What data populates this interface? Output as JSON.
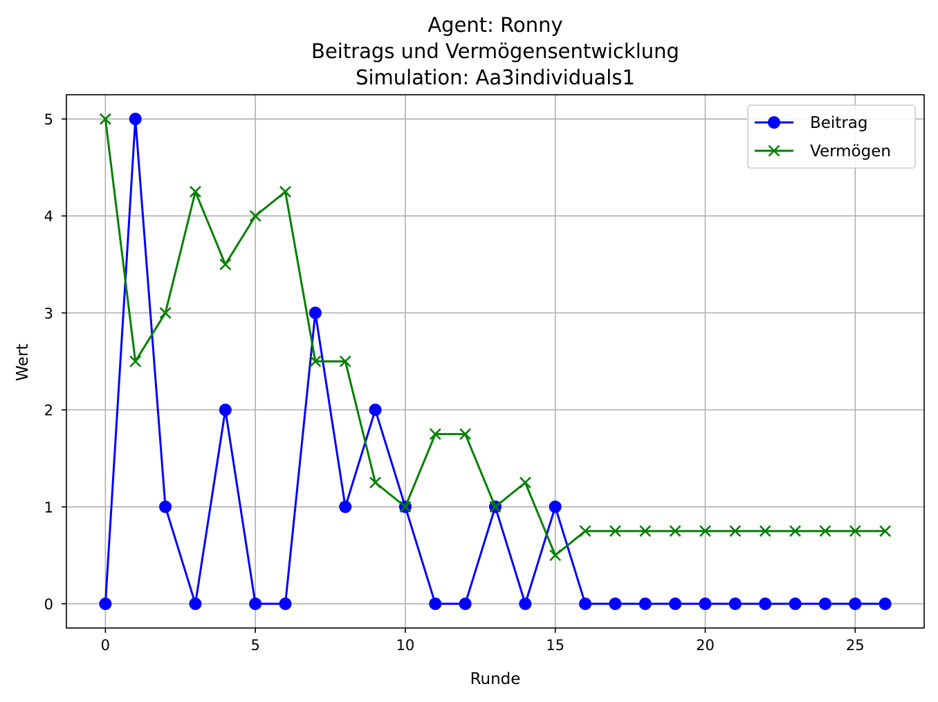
{
  "chart_data": {
    "type": "line",
    "title_lines": [
      "Agent: Ronny",
      "Beitrags und Vermögensentwicklung",
      "Simulation: Aa3individuals1"
    ],
    "xlabel": "Runde",
    "ylabel": "Wert",
    "xlim": [
      -1.3,
      27.3
    ],
    "ylim": [
      -0.25,
      5.25
    ],
    "xticks": [
      0,
      5,
      10,
      15,
      20,
      25
    ],
    "yticks": [
      0,
      1,
      2,
      3,
      4,
      5
    ],
    "xtick_labels": [
      "0",
      "5",
      "10",
      "15",
      "20",
      "25"
    ],
    "ytick_labels": [
      "0",
      "1",
      "2",
      "3",
      "4",
      "5"
    ],
    "grid": true,
    "legend_position": "top-right",
    "x": [
      0,
      1,
      2,
      3,
      4,
      5,
      6,
      7,
      8,
      9,
      10,
      11,
      12,
      13,
      14,
      15,
      16,
      17,
      18,
      19,
      20,
      21,
      22,
      23,
      24,
      25,
      26
    ],
    "series": [
      {
        "name": "Beitrag",
        "color": "#0000ff",
        "marker": "circle",
        "values": [
          0,
          5,
          1,
          0,
          2,
          0,
          0,
          3,
          1,
          2,
          1,
          0,
          0,
          1,
          0,
          1,
          0,
          0,
          0,
          0,
          0,
          0,
          0,
          0,
          0,
          0,
          0
        ]
      },
      {
        "name": "Vermögen",
        "color": "#008000",
        "marker": "x",
        "values": [
          5,
          2.5,
          3,
          4.25,
          3.5,
          4,
          4.25,
          2.5,
          2.5,
          1.25,
          1,
          1.75,
          1.75,
          1,
          1.25,
          0.5,
          0.75,
          0.75,
          0.75,
          0.75,
          0.75,
          0.75,
          0.75,
          0.75,
          0.75,
          0.75,
          0.75
        ]
      }
    ]
  }
}
